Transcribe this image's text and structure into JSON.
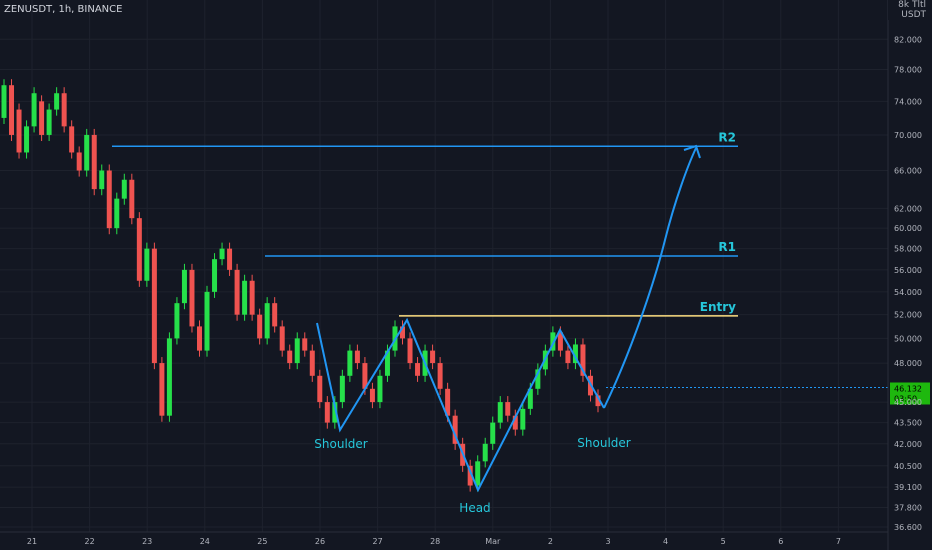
{
  "ticker": "ZENUSDT, 1h, BINANCE",
  "currency_box": {
    "line1": "8k Tltl",
    "line2": "USDT"
  },
  "colors": {
    "background": "#131722",
    "grid": "#1e222d",
    "up": "#26a69a",
    "up_bright": "#26e04a",
    "down": "#ef5350",
    "pattern_line": "#2196f3",
    "resistance_line": "#2196f3",
    "entry_line": "#ffe082",
    "text": "#d1d4dc",
    "annotation": "#26c6da",
    "axis_text": "#b2b5be",
    "price_badge": "#1eb80e"
  },
  "chart_data": {
    "type": "candlestick",
    "y_axis": {
      "scale": "log",
      "ticks": [
        "82.000",
        "78.000",
        "74.000",
        "70.000",
        "66.000",
        "62.000",
        "60.000",
        "58.000",
        "56.000",
        "54.000",
        "52.000",
        "50.000",
        "48.000",
        "45.000",
        "43.500",
        "42.000",
        "40.500",
        "39.100",
        "37.800",
        "36.600"
      ],
      "range": [
        36.3,
        85.5
      ]
    },
    "x_axis": {
      "ticks": [
        "21",
        "22",
        "23",
        "24",
        "25",
        "26",
        "27",
        "28",
        "Mar",
        "2",
        "3",
        "4",
        "5",
        "6",
        "7"
      ],
      "range_days": [
        20.5,
        28.4
      ]
    },
    "current_price": {
      "value": 46.1,
      "label_top": "46.132",
      "label_bottom": "03:50"
    },
    "levels": [
      {
        "label": "R2",
        "price": 68.7,
        "from": 22.4,
        "to": 27.15
      },
      {
        "label": "R1",
        "price": 57.3,
        "from": 24.05,
        "to": 27.15
      },
      {
        "label": "Entry",
        "price": 51.9,
        "from": 26.35,
        "to": 27.15
      }
    ],
    "pattern": {
      "points": [
        [
          22.4,
          51.8
        ],
        [
          22.74,
          43.6
        ],
        [
          23.5,
          51.3
        ],
        [
          24.45,
          39.1
        ],
        [
          25.3,
          50.6
        ],
        [
          25.85,
          44.7
        ]
      ],
      "labels": [
        {
          "text": "Shoulder",
          "x": 22.75,
          "price": 42.3
        },
        {
          "text": "Head",
          "x": 24.47,
          "price": 37.5
        },
        {
          "text": "Shoulder",
          "x": 25.87,
          "price": 42.4
        }
      ]
    },
    "projection_points": [
      [
        25.85,
        44.7
      ],
      [
        26.5,
        50.8
      ],
      [
        27.1,
        60.0
      ],
      [
        27.45,
        66.0
      ],
      [
        27.6,
        68.0
      ]
    ],
    "candles": [
      [
        72,
        76
      ],
      [
        76,
        70
      ],
      [
        73,
        68
      ],
      [
        68,
        71
      ],
      [
        71,
        75
      ],
      [
        74,
        70
      ],
      [
        70,
        73
      ],
      [
        73,
        75
      ],
      [
        75,
        71
      ],
      [
        71,
        68
      ],
      [
        68,
        66
      ],
      [
        66,
        70
      ],
      [
        70,
        64
      ],
      [
        64,
        66
      ],
      [
        66,
        60
      ],
      [
        60,
        63
      ],
      [
        63,
        65
      ],
      [
        65,
        61
      ],
      [
        61,
        55
      ],
      [
        55,
        58
      ],
      [
        58,
        48
      ],
      [
        48,
        44
      ],
      [
        44,
        50
      ],
      [
        50,
        53
      ],
      [
        53,
        56
      ],
      [
        56,
        51
      ],
      [
        51,
        49
      ],
      [
        49,
        54
      ],
      [
        54,
        57
      ],
      [
        57,
        58
      ],
      [
        58,
        56
      ],
      [
        56,
        52
      ],
      [
        52,
        55
      ],
      [
        55,
        52
      ],
      [
        52,
        50
      ],
      [
        50,
        53
      ],
      [
        53,
        51
      ],
      [
        51,
        49
      ],
      [
        49,
        48
      ],
      [
        48,
        50
      ],
      [
        50,
        49
      ],
      [
        49,
        47
      ],
      [
        47,
        45
      ],
      [
        45,
        43.5
      ],
      [
        43.5,
        45
      ],
      [
        45,
        47
      ],
      [
        47,
        49
      ],
      [
        49,
        48
      ],
      [
        48,
        46
      ],
      [
        46,
        45
      ],
      [
        45,
        47
      ],
      [
        47,
        49
      ],
      [
        49,
        51
      ],
      [
        51,
        50
      ],
      [
        50,
        48
      ],
      [
        48,
        47
      ],
      [
        47,
        49
      ],
      [
        49,
        48
      ],
      [
        48,
        46
      ],
      [
        46,
        44
      ],
      [
        44,
        42
      ],
      [
        42,
        40.5
      ],
      [
        40.5,
        39.2
      ],
      [
        39.2,
        40.8
      ],
      [
        40.8,
        42
      ],
      [
        42,
        43.5
      ],
      [
        43.5,
        45
      ],
      [
        45,
        44
      ],
      [
        44,
        43
      ],
      [
        43,
        44.5
      ],
      [
        44.5,
        46
      ],
      [
        46,
        47.5
      ],
      [
        47.5,
        49
      ],
      [
        49,
        50.5
      ],
      [
        50.5,
        49
      ],
      [
        49,
        48
      ],
      [
        48,
        49.5
      ],
      [
        49.5,
        47
      ],
      [
        47,
        45.5
      ],
      [
        45.5,
        44.7
      ]
    ],
    "x_axis_label": "",
    "y_axis_label": ""
  }
}
